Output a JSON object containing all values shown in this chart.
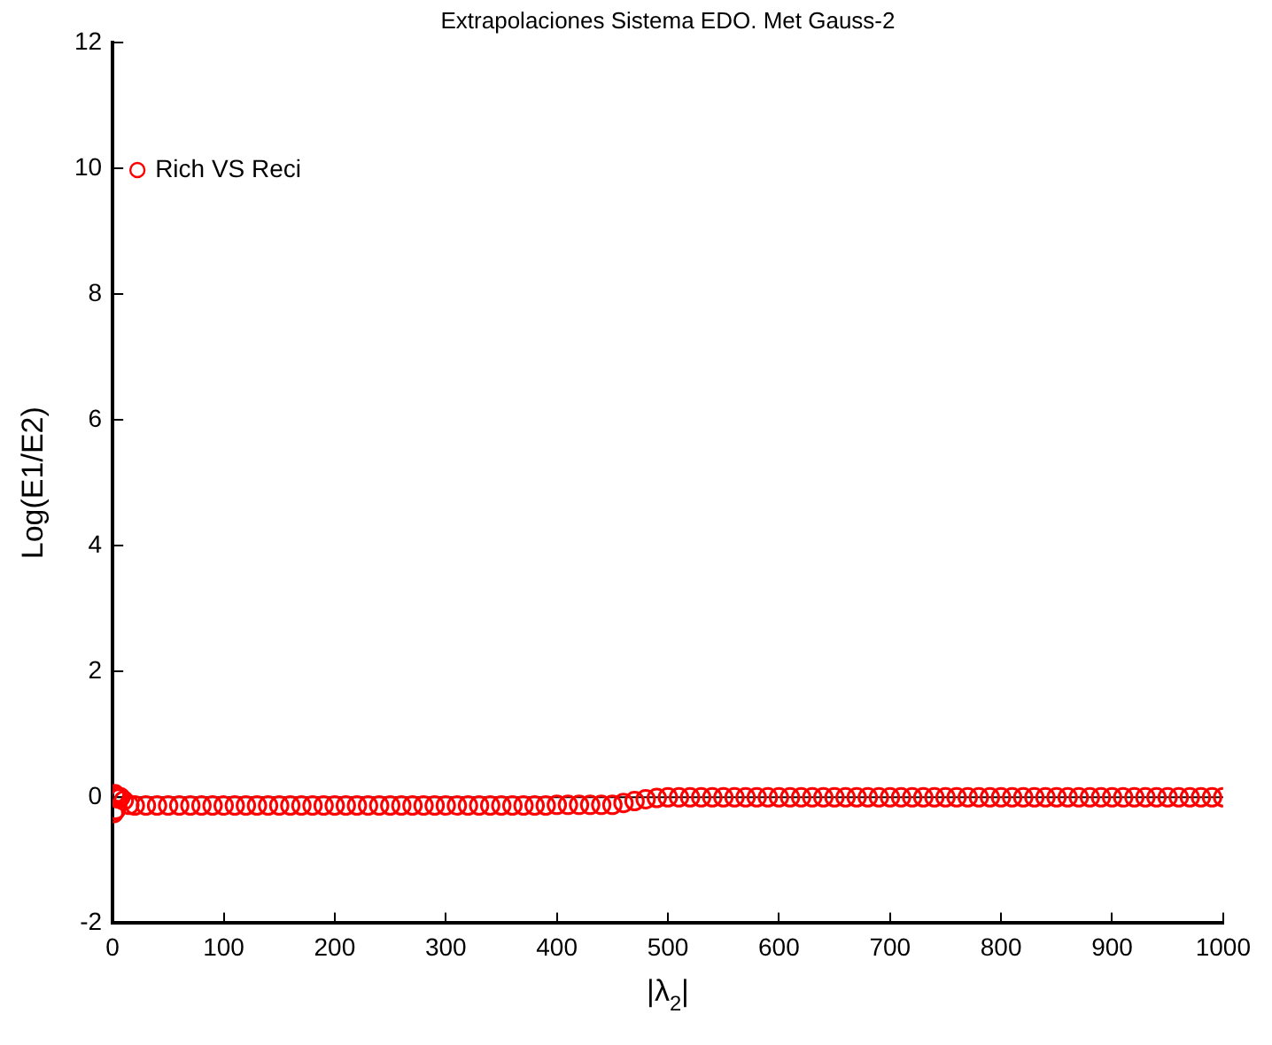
{
  "chart_data": {
    "type": "scatter",
    "title": "Extrapolaciones Sistema EDO. Met Gauss-2",
    "xlabel": "|λ$_{2}$|",
    "ylabel": "Log(E1/E2)",
    "xlim": [
      0,
      1000
    ],
    "xticks": [
      0,
      100,
      200,
      300,
      400,
      500,
      600,
      700,
      800,
      900,
      1000
    ],
    "ylim": [
      -2,
      12
    ],
    "yticks": [
      -2,
      0,
      2,
      4,
      6,
      8,
      10,
      12
    ],
    "grid": false,
    "legend": "top left",
    "marker": "circle",
    "ref_lines": [
      {
        "axis": "y",
        "value": 0,
        "color": "#000000"
      }
    ],
    "series": [
      {
        "name": "Rich VS Reci",
        "color": "#ff0000",
        "x": [
          1,
          2,
          3,
          4,
          5,
          7,
          10,
          15,
          20,
          30,
          40,
          50,
          60,
          70,
          80,
          90,
          100,
          110,
          120,
          130,
          140,
          150,
          160,
          170,
          180,
          190,
          200,
          210,
          220,
          230,
          240,
          250,
          260,
          270,
          280,
          290,
          300,
          310,
          320,
          330,
          340,
          350,
          360,
          370,
          380,
          390,
          400,
          410,
          420,
          430,
          440,
          450,
          460,
          470,
          480,
          490,
          500,
          510,
          520,
          530,
          540,
          550,
          560,
          570,
          580,
          590,
          600,
          610,
          620,
          630,
          640,
          650,
          660,
          670,
          680,
          690,
          700,
          710,
          720,
          730,
          740,
          750,
          760,
          770,
          780,
          790,
          800,
          810,
          820,
          830,
          840,
          850,
          860,
          870,
          880,
          890,
          900,
          910,
          920,
          930,
          940,
          950,
          960,
          970,
          980,
          990,
          1000
        ],
        "values": [
          -0.25,
          0.05,
          -0.2,
          0.02,
          -0.02,
          0,
          -0.05,
          -0.12,
          -0.13,
          -0.13,
          -0.13,
          -0.13,
          -0.13,
          -0.13,
          -0.13,
          -0.13,
          -0.13,
          -0.13,
          -0.13,
          -0.13,
          -0.13,
          -0.13,
          -0.13,
          -0.13,
          -0.13,
          -0.13,
          -0.13,
          -0.13,
          -0.13,
          -0.13,
          -0.13,
          -0.13,
          -0.13,
          -0.13,
          -0.13,
          -0.13,
          -0.13,
          -0.13,
          -0.13,
          -0.13,
          -0.13,
          -0.13,
          -0.13,
          -0.13,
          -0.13,
          -0.13,
          -0.12,
          -0.12,
          -0.12,
          -0.12,
          -0.12,
          -0.12,
          -0.09,
          -0.06,
          -0.03,
          -0.01,
          0,
          0,
          0,
          0,
          0,
          0,
          0,
          0,
          0,
          0,
          0,
          0,
          0,
          0,
          0,
          0,
          0,
          0,
          0,
          0,
          0,
          0,
          0,
          0,
          0,
          0,
          0,
          0,
          0,
          0,
          0,
          0,
          0,
          0,
          0,
          0,
          0,
          0,
          0,
          0,
          0,
          0,
          0,
          0,
          0,
          0,
          0,
          0,
          0,
          0,
          0
        ]
      }
    ]
  }
}
